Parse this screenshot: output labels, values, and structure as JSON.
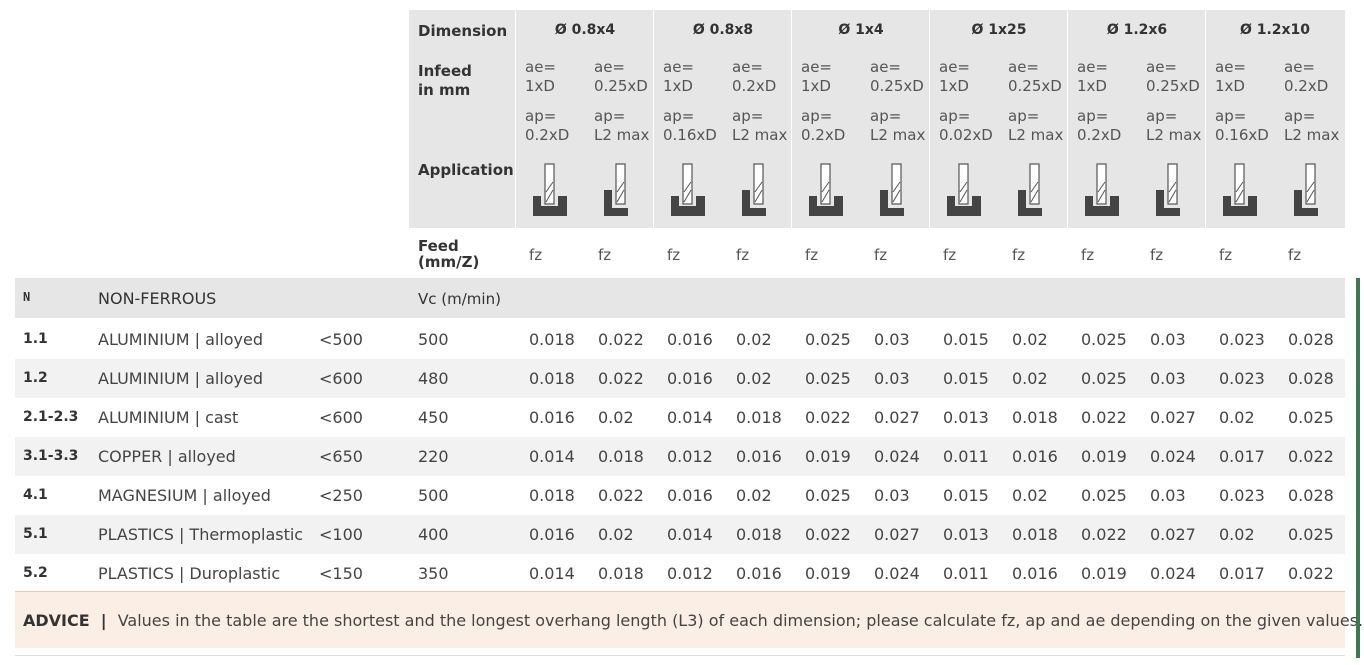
{
  "header": {
    "dimension_label": "Dimension",
    "infeed_label_1": "Infeed",
    "infeed_label_2": "in mm",
    "application_label": "Application",
    "feed_label_1": "Feed",
    "feed_label_2": "(mm/Z)"
  },
  "dimensions": [
    {
      "title": "Ø 0.8x4",
      "ae": [
        "ae=",
        "1xD",
        "ae=",
        "0.25xD"
      ],
      "ap": [
        "ap=",
        "0.2xD",
        "ap=",
        "L2 max"
      ]
    },
    {
      "title": "Ø 0.8x8",
      "ae": [
        "ae=",
        "1xD",
        "ae=",
        "0.2xD"
      ],
      "ap": [
        "ap=",
        "0.16xD",
        "ap=",
        "L2 max"
      ]
    },
    {
      "title": "Ø 1x4",
      "ae": [
        "ae=",
        "1xD",
        "ae=",
        "0.25xD"
      ],
      "ap": [
        "ap=",
        "0.2xD",
        "ap=",
        "L2 max"
      ]
    },
    {
      "title": "Ø 1x25",
      "ae": [
        "ae=",
        "1xD",
        "ae=",
        "0.25xD"
      ],
      "ap": [
        "ap=",
        "0.02xD",
        "ap=",
        "L2 max"
      ]
    },
    {
      "title": "Ø 1.2x6",
      "ae": [
        "ae=",
        "1xD",
        "ae=",
        "0.25xD"
      ],
      "ap": [
        "ap=",
        "0.2xD",
        "ap=",
        "L2 max"
      ]
    },
    {
      "title": "Ø 1.2x10",
      "ae": [
        "ae=",
        "1xD",
        "ae=",
        "0.2xD"
      ],
      "ap": [
        "ap=",
        "0.16xD",
        "ap=",
        "L2 max"
      ]
    }
  ],
  "feed_unit": "fz",
  "group": {
    "code": "N",
    "name": "NON-FERROUS",
    "vc_label": "Vc (m/min)"
  },
  "rows": [
    {
      "code": "1.1",
      "name": "ALUMINIUM | alloyed",
      "strength": "<500",
      "vc": "500",
      "values": [
        "0.018",
        "0.022",
        "0.016",
        "0.02",
        "0.025",
        "0.03",
        "0.015",
        "0.02",
        "0.025",
        "0.03",
        "0.023",
        "0.028"
      ]
    },
    {
      "code": "1.2",
      "name": "ALUMINIUM | alloyed",
      "strength": "<600",
      "vc": "480",
      "values": [
        "0.018",
        "0.022",
        "0.016",
        "0.02",
        "0.025",
        "0.03",
        "0.015",
        "0.02",
        "0.025",
        "0.03",
        "0.023",
        "0.028"
      ]
    },
    {
      "code": "2.1-2.3",
      "name": "ALUMINIUM | cast",
      "strength": "<600",
      "vc": "450",
      "values": [
        "0.016",
        "0.02",
        "0.014",
        "0.018",
        "0.022",
        "0.027",
        "0.013",
        "0.018",
        "0.022",
        "0.027",
        "0.02",
        "0.025"
      ]
    },
    {
      "code": "3.1-3.3",
      "name": "COPPER | alloyed",
      "strength": "<650",
      "vc": "220",
      "values": [
        "0.014",
        "0.018",
        "0.012",
        "0.016",
        "0.019",
        "0.024",
        "0.011",
        "0.016",
        "0.019",
        "0.024",
        "0.017",
        "0.022"
      ]
    },
    {
      "code": "4.1",
      "name": "MAGNESIUM | alloyed",
      "strength": "<250",
      "vc": "500",
      "values": [
        "0.018",
        "0.022",
        "0.016",
        "0.02",
        "0.025",
        "0.03",
        "0.015",
        "0.02",
        "0.025",
        "0.03",
        "0.023",
        "0.028"
      ]
    },
    {
      "code": "5.1",
      "name": "PLASTICS | Thermoplastic",
      "strength": "<100",
      "vc": "400",
      "values": [
        "0.016",
        "0.02",
        "0.014",
        "0.018",
        "0.022",
        "0.027",
        "0.013",
        "0.018",
        "0.022",
        "0.027",
        "0.02",
        "0.025"
      ]
    },
    {
      "code": "5.2",
      "name": "PLASTICS | Duroplastic",
      "strength": "<150",
      "vc": "350",
      "values": [
        "0.014",
        "0.018",
        "0.012",
        "0.016",
        "0.019",
        "0.024",
        "0.011",
        "0.016",
        "0.019",
        "0.024",
        "0.017",
        "0.022"
      ]
    }
  ],
  "advice": {
    "label": "ADVICE",
    "separator": "|",
    "text": "Values in the table are the shortest and the longest overhang length (L3) of each dimension; please calculate fz, ap and ae depending on the given values."
  },
  "icons": [
    "slot-milling-icon",
    "side-milling-icon"
  ],
  "colors": {
    "header_bg": "#e6e6e6",
    "row_alt": "#f2f2f2",
    "advice_bg": "#fbeee5",
    "accent_bar": "#3a7a4c"
  }
}
